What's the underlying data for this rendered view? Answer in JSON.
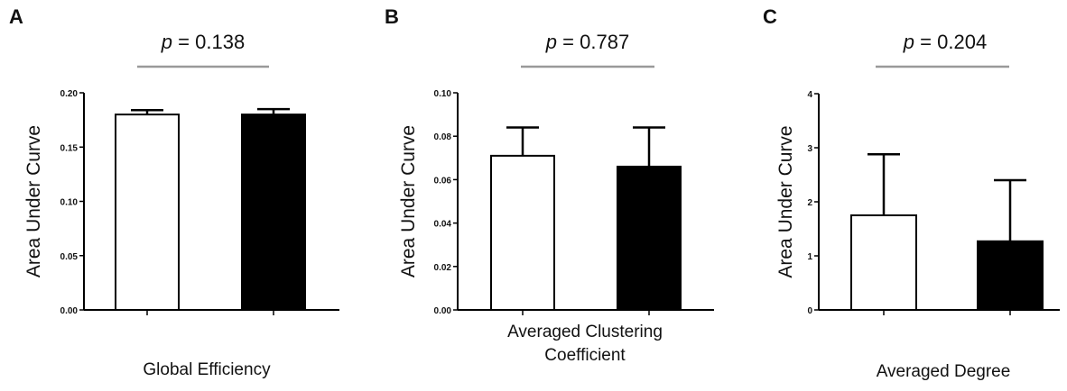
{
  "chart_data": [
    {
      "type": "bar",
      "panel": "A",
      "p_text": "= 0.138",
      "ylabel": "Area Under Curve",
      "xlabel": [
        "Global Efficiency"
      ],
      "ylim": [
        0,
        0.2
      ],
      "yticks": [
        "0.00",
        "0.05",
        "0.10",
        "0.15",
        "0.20"
      ],
      "categories": [
        "",
        ""
      ],
      "values": [
        0.18,
        0.18
      ],
      "errors": [
        0.004,
        0.005
      ],
      "fills": [
        "#ffffff",
        "#000000"
      ]
    },
    {
      "type": "bar",
      "panel": "B",
      "p_text": "= 0.787",
      "ylabel": "Area Under Curve",
      "xlabel": [
        "Averaged Clustering",
        "Coefficient"
      ],
      "ylim": [
        0,
        0.1
      ],
      "yticks": [
        "0.00",
        "0.02",
        "0.04",
        "0.06",
        "0.08",
        "0.10"
      ],
      "categories": [
        "",
        ""
      ],
      "values": [
        0.071,
        0.066
      ],
      "errors": [
        0.013,
        0.018
      ],
      "fills": [
        "#ffffff",
        "#000000"
      ]
    },
    {
      "type": "bar",
      "panel": "C",
      "p_text": "= 0.204",
      "ylabel": "Area Under Curve",
      "xlabel": [
        "Averaged Degree"
      ],
      "ylim": [
        0,
        4
      ],
      "yticks": [
        "0",
        "1",
        "2",
        "3",
        "4"
      ],
      "categories": [
        "",
        ""
      ],
      "values": [
        1.75,
        1.27
      ],
      "errors": [
        1.13,
        1.13
      ],
      "fills": [
        "#ffffff",
        "#000000"
      ]
    }
  ],
  "p_symbol": "p"
}
